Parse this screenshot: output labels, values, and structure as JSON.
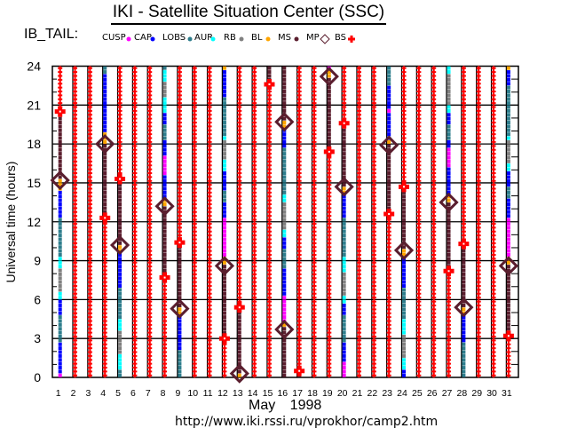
{
  "header": {
    "title": "IKI - Satellite Situation Center (SSC)",
    "dataset": "IB_TAIL:"
  },
  "legend": [
    {
      "key": "cusp",
      "label": "CUSP",
      "color": "#ff00ff",
      "marker": "dot"
    },
    {
      "key": "cap",
      "label": "CAP",
      "color": "#0000ff",
      "marker": "dot"
    },
    {
      "key": "lobs",
      "label": "LOBS",
      "color": "#2e7d8c",
      "marker": "dot"
    },
    {
      "key": "aur",
      "label": "AUR",
      "color": "#00ffff",
      "marker": "dot"
    },
    {
      "key": "rb",
      "label": "RB",
      "color": "#808080",
      "marker": "dot"
    },
    {
      "key": "bl",
      "label": "BL",
      "color": "#ffa500",
      "marker": "dot"
    },
    {
      "key": "ms",
      "label": "MS",
      "color": "#5a1e2e",
      "marker": "dot"
    },
    {
      "key": "mp",
      "label": "MP",
      "color": "#5a1e2e",
      "marker": "diamond"
    },
    {
      "key": "bs",
      "label": "BS",
      "color": "#ff0000",
      "marker": "plus"
    }
  ],
  "footer": {
    "month": "May 1998",
    "url": "http://www.iki.rssi.ru/vprokhor/camp2.htm"
  },
  "chart_data": {
    "type": "scatter",
    "title": "IKI - Satellite Situation Center (SSC)",
    "xlabel": "May 1998",
    "ylabel": "Universal time (hours)",
    "xlim": [
      1,
      31
    ],
    "ylim": [
      0,
      24
    ],
    "y_ticks": [
      0,
      3,
      6,
      9,
      12,
      15,
      18,
      21,
      24
    ],
    "grid": true,
    "days": [
      {
        "day": 1,
        "segments": [
          [
            20.5,
            24,
            "bs"
          ],
          [
            15.2,
            20.5,
            "ms"
          ],
          [
            14.5,
            15.2,
            "bl"
          ],
          [
            12.4,
            14.5,
            "cap"
          ],
          [
            9.4,
            12.4,
            "lobs"
          ],
          [
            8.5,
            9.4,
            "aur"
          ],
          [
            6.7,
            8.5,
            "rb"
          ],
          [
            6.0,
            6.7,
            "aur"
          ],
          [
            4.9,
            6.0,
            "cap"
          ],
          [
            2.6,
            4.9,
            "lobs"
          ],
          [
            0.3,
            2.6,
            "cap"
          ],
          [
            0,
            0.3,
            "cusp"
          ]
        ],
        "mp": [
          15.2
        ],
        "bs": [
          20.5
        ]
      },
      {
        "day": 2,
        "segments": [
          [
            0,
            24,
            "bs"
          ]
        ],
        "mp": [],
        "bs": []
      },
      {
        "day": 3,
        "segments": [
          [
            0,
            24,
            "bs"
          ]
        ],
        "mp": [],
        "bs": []
      },
      {
        "day": 4,
        "segments": [
          [
            23.3,
            24,
            "lobs"
          ],
          [
            18.75,
            23.3,
            "cap"
          ],
          [
            18.0,
            18.75,
            "bl"
          ],
          [
            12.3,
            18.0,
            "ms"
          ],
          [
            0,
            12.3,
            "bs"
          ]
        ],
        "mp": [
          18.0
        ],
        "bs": [
          12.3
        ]
      },
      {
        "day": 5,
        "segments": [
          [
            15.3,
            24,
            "bs"
          ],
          [
            10.2,
            15.3,
            "ms"
          ],
          [
            9.5,
            10.2,
            "bl"
          ],
          [
            6.9,
            9.5,
            "cap"
          ],
          [
            4.6,
            6.9,
            "lobs"
          ],
          [
            3.7,
            4.6,
            "aur"
          ],
          [
            1.9,
            3.7,
            "rb"
          ],
          [
            0.6,
            1.9,
            "aur"
          ],
          [
            0,
            0.6,
            "lobs"
          ]
        ],
        "mp": [
          10.2
        ],
        "bs": [
          15.3
        ]
      },
      {
        "day": 6,
        "segments": [
          [
            0,
            24,
            "bs"
          ]
        ],
        "mp": [],
        "bs": []
      },
      {
        "day": 7,
        "segments": [
          [
            0,
            24,
            "bs"
          ]
        ],
        "mp": [],
        "bs": []
      },
      {
        "day": 8,
        "segments": [
          [
            23.6,
            24,
            "lobs"
          ],
          [
            22.8,
            23.6,
            "aur"
          ],
          [
            21.5,
            22.8,
            "rb"
          ],
          [
            20.5,
            21.5,
            "aur"
          ],
          [
            19.4,
            20.5,
            "cap"
          ],
          [
            18.4,
            19.4,
            "lobs"
          ],
          [
            17.2,
            18.4,
            "cap"
          ],
          [
            15.5,
            17.2,
            "cusp"
          ],
          [
            13.7,
            15.5,
            "cap"
          ],
          [
            13.2,
            13.7,
            "bl"
          ],
          [
            7.7,
            13.2,
            "ms"
          ],
          [
            0,
            7.7,
            "bs"
          ]
        ],
        "mp": [
          13.2
        ],
        "bs": [
          7.7
        ]
      },
      {
        "day": 9,
        "segments": [
          [
            10.4,
            24,
            "bs"
          ],
          [
            5.3,
            10.4,
            "ms"
          ],
          [
            4.8,
            5.3,
            "bl"
          ],
          [
            2.2,
            4.8,
            "cap"
          ],
          [
            0,
            2.2,
            "lobs"
          ]
        ],
        "mp": [
          5.3
        ],
        "bs": [
          10.4
        ]
      },
      {
        "day": 10,
        "segments": [
          [
            0,
            24,
            "bs"
          ]
        ],
        "mp": [],
        "bs": []
      },
      {
        "day": 11,
        "segments": [
          [
            0,
            24,
            "bs"
          ]
        ],
        "mp": [],
        "bs": []
      },
      {
        "day": 12,
        "segments": [
          [
            23.6,
            24,
            "bl"
          ],
          [
            21.5,
            23.6,
            "cap"
          ],
          [
            18.7,
            21.5,
            "lobs"
          ],
          [
            18.4,
            18.7,
            "aur"
          ],
          [
            16.7,
            18.4,
            "rb"
          ],
          [
            15.8,
            16.7,
            "aur"
          ],
          [
            14.4,
            15.8,
            "cap"
          ],
          [
            13.5,
            14.4,
            "lobs"
          ],
          [
            12.2,
            13.5,
            "cap"
          ],
          [
            9.2,
            12.2,
            "cusp"
          ],
          [
            8.7,
            9.2,
            "bl"
          ],
          [
            3.0,
            8.7,
            "ms"
          ],
          [
            0,
            3.0,
            "bs"
          ]
        ],
        "mp": [
          8.6
        ],
        "bs": [
          3.0
        ]
      },
      {
        "day": 13,
        "segments": [
          [
            5.4,
            24,
            "bs"
          ],
          [
            0.4,
            5.4,
            "ms"
          ],
          [
            0,
            0.4,
            "bl"
          ]
        ],
        "mp": [
          0.3
        ],
        "bs": [
          5.4
        ]
      },
      {
        "day": 14,
        "segments": [
          [
            0,
            24,
            "bs"
          ]
        ],
        "mp": [],
        "bs": []
      },
      {
        "day": 15,
        "segments": [
          [
            22.6,
            24,
            "ms"
          ],
          [
            0,
            22.6,
            "bs"
          ]
        ],
        "mp": [],
        "bs": [
          22.6
        ]
      },
      {
        "day": 16,
        "segments": [
          [
            19.7,
            24,
            "ms"
          ],
          [
            19.1,
            19.7,
            "bl"
          ],
          [
            17.7,
            19.1,
            "cap"
          ],
          [
            14.0,
            17.7,
            "lobs"
          ],
          [
            13.5,
            14.0,
            "aur"
          ],
          [
            11.5,
            13.5,
            "rb"
          ],
          [
            10.8,
            11.5,
            "aur"
          ],
          [
            9.9,
            10.8,
            "cap"
          ],
          [
            8.3,
            9.9,
            "lobs"
          ],
          [
            6.2,
            8.3,
            "cap"
          ],
          [
            4.3,
            6.2,
            "cusp"
          ],
          [
            3.9,
            4.3,
            "bl"
          ],
          [
            0,
            3.9,
            "ms"
          ]
        ],
        "mp": [
          19.7,
          3.7
        ],
        "bs": []
      },
      {
        "day": 17,
        "segments": [
          [
            0.5,
            24,
            "bs"
          ],
          [
            0,
            0.5,
            "ms"
          ]
        ],
        "mp": [],
        "bs": [
          0.5
        ]
      },
      {
        "day": 18,
        "segments": [
          [
            0,
            24,
            "bs"
          ]
        ],
        "mp": [],
        "bs": []
      },
      {
        "day": 19,
        "segments": [
          [
            23.7,
            24,
            "cusp"
          ],
          [
            23.2,
            23.7,
            "bl"
          ],
          [
            17.4,
            23.2,
            "ms"
          ],
          [
            0,
            17.4,
            "bs"
          ]
        ],
        "mp": [
          23.2
        ],
        "bs": [
          17.4
        ]
      },
      {
        "day": 20,
        "segments": [
          [
            19.6,
            24,
            "bs"
          ],
          [
            14.7,
            19.6,
            "ms"
          ],
          [
            14.1,
            14.7,
            "bl"
          ],
          [
            12.4,
            14.1,
            "cap"
          ],
          [
            9.2,
            12.4,
            "lobs"
          ],
          [
            8.2,
            9.2,
            "aur"
          ],
          [
            6.2,
            8.2,
            "rb"
          ],
          [
            5.6,
            6.2,
            "aur"
          ],
          [
            4.9,
            5.6,
            "cap"
          ],
          [
            2.8,
            4.9,
            "lobs"
          ],
          [
            1.2,
            2.8,
            "cap"
          ],
          [
            0,
            1.2,
            "cusp"
          ]
        ],
        "mp": [
          14.7
        ],
        "bs": [
          19.6
        ]
      },
      {
        "day": 21,
        "segments": [
          [
            0,
            24,
            "bs"
          ]
        ],
        "mp": [],
        "bs": []
      },
      {
        "day": 22,
        "segments": [
          [
            0,
            24,
            "bs"
          ]
        ],
        "mp": [],
        "bs": []
      },
      {
        "day": 23,
        "segments": [
          [
            22.4,
            24,
            "lobs"
          ],
          [
            20.8,
            22.4,
            "cap"
          ],
          [
            20.4,
            20.8,
            "cusp"
          ],
          [
            18.4,
            20.4,
            "cap"
          ],
          [
            18.0,
            18.4,
            "bl"
          ],
          [
            12.6,
            18.0,
            "ms"
          ],
          [
            0,
            12.6,
            "bs"
          ]
        ],
        "mp": [
          17.9
        ],
        "bs": [
          12.6
        ]
      },
      {
        "day": 24,
        "segments": [
          [
            14.7,
            24,
            "bs"
          ],
          [
            9.8,
            14.7,
            "ms"
          ],
          [
            9.2,
            9.8,
            "bl"
          ],
          [
            6.9,
            9.2,
            "cap"
          ],
          [
            4.4,
            6.9,
            "lobs"
          ],
          [
            3.2,
            4.4,
            "aur"
          ],
          [
            1.5,
            3.2,
            "rb"
          ],
          [
            0.6,
            1.5,
            "aur"
          ],
          [
            0,
            0.6,
            "cap"
          ]
        ],
        "mp": [
          9.8
        ],
        "bs": [
          14.7
        ]
      },
      {
        "day": 25,
        "segments": [
          [
            0,
            24,
            "bs"
          ]
        ],
        "mp": [],
        "bs": []
      },
      {
        "day": 26,
        "segments": [
          [
            0,
            24,
            "bs"
          ]
        ],
        "mp": [],
        "bs": []
      },
      {
        "day": 27,
        "segments": [
          [
            23.4,
            24,
            "aur"
          ],
          [
            21.0,
            23.4,
            "rb"
          ],
          [
            20.5,
            21.0,
            "aur"
          ],
          [
            19.4,
            20.5,
            "cap"
          ],
          [
            18.4,
            19.4,
            "lobs"
          ],
          [
            17.7,
            18.4,
            "cap"
          ],
          [
            16.2,
            17.7,
            "cusp"
          ],
          [
            14.1,
            16.2,
            "cap"
          ],
          [
            13.6,
            14.1,
            "bl"
          ],
          [
            8.2,
            13.6,
            "ms"
          ],
          [
            0,
            8.2,
            "bs"
          ]
        ],
        "mp": [
          13.5
        ],
        "bs": [
          8.2
        ]
      },
      {
        "day": 28,
        "segments": [
          [
            10.3,
            24,
            "bs"
          ],
          [
            5.4,
            10.3,
            "ms"
          ],
          [
            4.8,
            5.4,
            "bl"
          ],
          [
            2.6,
            4.8,
            "cap"
          ],
          [
            0,
            2.6,
            "lobs"
          ]
        ],
        "mp": [
          5.4
        ],
        "bs": [
          10.3
        ]
      },
      {
        "day": 29,
        "segments": [
          [
            0,
            24,
            "bs"
          ]
        ],
        "mp": [],
        "bs": []
      },
      {
        "day": 30,
        "segments": [
          [
            0,
            24,
            "bs"
          ]
        ],
        "mp": [],
        "bs": []
      },
      {
        "day": 31,
        "segments": [
          [
            23.6,
            24,
            "bl"
          ],
          [
            22.5,
            23.6,
            "cap"
          ],
          [
            18.7,
            22.5,
            "lobs"
          ],
          [
            18.4,
            18.7,
            "aur"
          ],
          [
            16.5,
            18.4,
            "rb"
          ],
          [
            15.8,
            16.5,
            "aur"
          ],
          [
            14.7,
            15.8,
            "cap"
          ],
          [
            13.7,
            14.7,
            "lobs"
          ],
          [
            12.4,
            13.7,
            "cap"
          ],
          [
            9.2,
            12.4,
            "cusp"
          ],
          [
            8.8,
            9.2,
            "bl"
          ],
          [
            3.2,
            8.8,
            "ms"
          ],
          [
            0,
            3.2,
            "bs"
          ]
        ],
        "mp": [
          8.6
        ],
        "bs": [
          3.2
        ]
      }
    ]
  }
}
